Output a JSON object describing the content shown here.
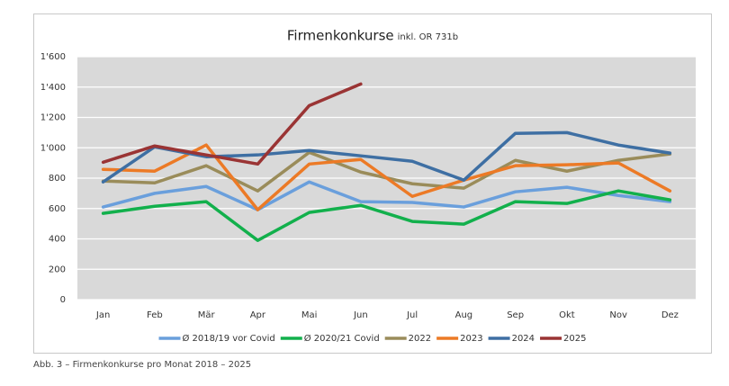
{
  "chart_data": {
    "type": "line",
    "title": "Firmenkonkurse",
    "subtitle": "inkl. OR 731b",
    "caption": "Abb. 3 – Firmenkonkurse pro Monat 2018 – 2025",
    "categories": [
      "Jan",
      "Feb",
      "Mär",
      "Apr",
      "Mai",
      "Jun",
      "Jul",
      "Aug",
      "Sep",
      "Okt",
      "Nov",
      "Dez"
    ],
    "ylim": [
      0,
      1600
    ],
    "yticks": [
      0,
      200,
      400,
      600,
      800,
      {
        "value": 1000,
        "label": "1'000"
      },
      {
        "value": 1200,
        "label": "1'200"
      },
      {
        "value": 1400,
        "label": "1'400"
      },
      {
        "value": 1600,
        "label": "1'600"
      }
    ],
    "grid": true,
    "series": [
      {
        "name": "Ø 2018/19 vor Covid",
        "color": "#6a9fdc",
        "values": [
          610,
          700,
          745,
          592,
          775,
          645,
          640,
          610,
          710,
          740,
          686,
          645
        ]
      },
      {
        "name": "Ø 2020/21 Covid",
        "color": "#12b04c",
        "values": [
          568,
          615,
          645,
          390,
          574,
          621,
          515,
          497,
          645,
          633,
          716,
          657
        ]
      },
      {
        "name": "2022",
        "color": "#9a8c5a",
        "values": [
          781,
          769,
          882,
          716,
          970,
          840,
          763,
          734,
          917,
          846,
          917,
          959
        ]
      },
      {
        "name": "2023",
        "color": "#ec7a26",
        "values": [
          858,
          846,
          1018,
          592,
          893,
          923,
          680,
          787,
          882,
          888,
          900,
          716
        ]
      },
      {
        "name": "2024",
        "color": "#3e6fa3",
        "values": [
          775,
          1006,
          941,
          953,
          982,
          947,
          911,
          787,
          1095,
          1100,
          1018,
          965
        ]
      },
      {
        "name": "2025",
        "color": "#9a3434",
        "values": [
          905,
          1012,
          953,
          893,
          1278,
          1420,
          null,
          null,
          null,
          null,
          null,
          null
        ]
      }
    ]
  }
}
